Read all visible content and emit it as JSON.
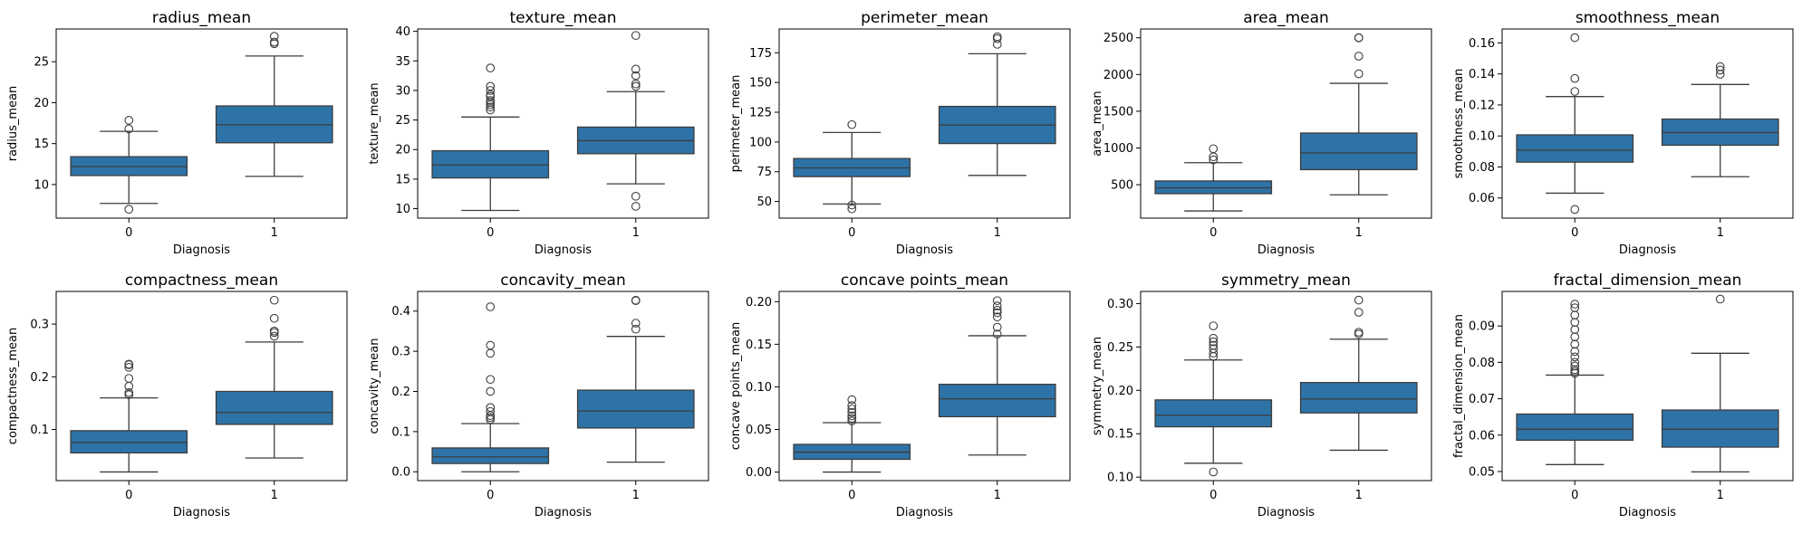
{
  "figure": {
    "background": "#ffffff",
    "box_color": "#2e73a8",
    "line_color": "#3d3d3d"
  },
  "chart_data": [
    {
      "type": "box",
      "title": "radius_mean",
      "xlabel": "Diagnosis",
      "ylabel": "radius_mean",
      "categories": [
        "0",
        "1"
      ],
      "ylim": [
        5.9,
        29.0
      ],
      "yticks": [
        10,
        15,
        20,
        25
      ],
      "boxes": [
        {
          "category": "0",
          "whislo": 7.7,
          "q1": 11.1,
          "med": 12.2,
          "q3": 13.4,
          "whishi": 16.5,
          "fliers": [
            6.98,
            16.8,
            17.85
          ]
        },
        {
          "category": "1",
          "whislo": 11.0,
          "q1": 15.1,
          "med": 17.3,
          "q3": 19.6,
          "whishi": 25.7,
          "fliers": [
            27.2,
            27.4,
            28.1
          ]
        }
      ]
    },
    {
      "type": "box",
      "title": "texture_mean",
      "xlabel": "Diagnosis",
      "ylabel": "texture_mean",
      "categories": [
        "0",
        "1"
      ],
      "ylim": [
        8.4,
        40.4
      ],
      "yticks": [
        10,
        15,
        20,
        25,
        30,
        35,
        40
      ],
      "boxes": [
        {
          "category": "0",
          "whislo": 9.7,
          "q1": 15.2,
          "med": 17.4,
          "q3": 19.8,
          "whishi": 25.5,
          "fliers": [
            26.7,
            27.2,
            27.6,
            28.0,
            28.3,
            29.0,
            29.3,
            30.0,
            30.7,
            33.8
          ]
        },
        {
          "category": "1",
          "whislo": 14.2,
          "q1": 19.3,
          "med": 21.5,
          "q3": 23.8,
          "whishi": 29.8,
          "fliers": [
            10.4,
            12.1,
            30.7,
            31.1,
            32.5,
            33.6,
            39.3
          ]
        }
      ]
    },
    {
      "type": "box",
      "title": "perimeter_mean",
      "xlabel": "Diagnosis",
      "ylabel": "perimeter_mean",
      "categories": [
        "0",
        "1"
      ],
      "ylim": [
        36,
        195
      ],
      "yticks": [
        50,
        75,
        100,
        125,
        150,
        175
      ],
      "boxes": [
        {
          "category": "0",
          "whislo": 47.9,
          "q1": 70.9,
          "med": 78.2,
          "q3": 86.1,
          "whishi": 108.0,
          "fliers": [
            43.8,
            47.0,
            114.6
          ]
        },
        {
          "category": "1",
          "whislo": 71.9,
          "q1": 98.7,
          "med": 114.2,
          "q3": 129.9,
          "whishi": 174.2,
          "fliers": [
            182.1,
            186.9,
            188.5
          ]
        }
      ]
    },
    {
      "type": "box",
      "title": "area_mean",
      "xlabel": "Diagnosis",
      "ylabel": "area_mean",
      "categories": [
        "0",
        "1"
      ],
      "ylim": [
        45,
        2620
      ],
      "yticks": [
        500,
        1000,
        1500,
        2000,
        2500
      ],
      "boxes": [
        {
          "category": "0",
          "whislo": 143,
          "q1": 378,
          "med": 458,
          "q3": 551,
          "whishi": 800,
          "fliers": [
            838,
            880,
            990
          ]
        },
        {
          "category": "1",
          "whislo": 362,
          "q1": 705,
          "med": 932,
          "q3": 1203,
          "whishi": 1880,
          "fliers": [
            2010,
            2250,
            2499,
            2501
          ]
        }
      ]
    },
    {
      "type": "box",
      "title": "smoothness_mean",
      "xlabel": "Diagnosis",
      "ylabel": "smoothness_mean",
      "categories": [
        "0",
        "1"
      ],
      "ylim": [
        0.047,
        0.169
      ],
      "yticks": [
        0.06,
        0.08,
        0.1,
        0.12,
        0.14,
        0.16
      ],
      "boxes": [
        {
          "category": "0",
          "whislo": 0.0631,
          "q1": 0.0831,
          "med": 0.0908,
          "q3": 0.1007,
          "whishi": 0.1254,
          "fliers": [
            0.0526,
            0.1287,
            0.1371,
            0.1634
          ]
        },
        {
          "category": "1",
          "whislo": 0.0737,
          "q1": 0.094,
          "med": 0.1022,
          "q3": 0.1109,
          "whishi": 0.1332,
          "fliers": [
            0.1398,
            0.1425,
            0.1447
          ]
        }
      ]
    },
    {
      "type": "box",
      "title": "compactness_mean",
      "xlabel": "Diagnosis",
      "ylabel": "compactness_mean",
      "categories": [
        "0",
        "1"
      ],
      "ylim": [
        0.003,
        0.362
      ],
      "yticks": [
        0.1,
        0.2,
        0.3
      ],
      "boxes": [
        {
          "category": "0",
          "whislo": 0.0194,
          "q1": 0.0556,
          "med": 0.0753,
          "q3": 0.0977,
          "whishi": 0.16,
          "fliers": [
            0.166,
            0.17,
            0.182,
            0.197,
            0.218,
            0.223,
            0.224
          ]
        },
        {
          "category": "1",
          "whislo": 0.046,
          "q1": 0.1097,
          "med": 0.1323,
          "q3": 0.1722,
          "whishi": 0.266,
          "fliers": [
            0.277,
            0.284,
            0.287,
            0.311,
            0.3454
          ]
        }
      ]
    },
    {
      "type": "box",
      "title": "concavity_mean",
      "xlabel": "Diagnosis",
      "ylabel": "concavity_mean",
      "categories": [
        "0",
        "1"
      ],
      "ylim": [
        -0.022,
        0.449
      ],
      "yticks": [
        0.0,
        0.1,
        0.2,
        0.3,
        0.4
      ],
      "boxes": [
        {
          "category": "0",
          "whislo": 0.0,
          "q1": 0.0206,
          "med": 0.0371,
          "q3": 0.0593,
          "whishi": 0.12,
          "fliers": [
            0.13,
            0.135,
            0.14,
            0.15,
            0.16,
            0.2,
            0.23,
            0.295,
            0.315,
            0.4108
          ]
        },
        {
          "category": "1",
          "whislo": 0.024,
          "q1": 0.109,
          "med": 0.1513,
          "q3": 0.2032,
          "whishi": 0.337,
          "fliers": [
            0.355,
            0.37,
            0.426,
            0.427
          ]
        }
      ]
    },
    {
      "type": "box",
      "title": "concave points_mean",
      "xlabel": "Diagnosis",
      "ylabel": "concave points_mean",
      "categories": [
        "0",
        "1"
      ],
      "ylim": [
        -0.01,
        0.212
      ],
      "yticks": [
        0.0,
        0.05,
        0.1,
        0.15,
        0.2
      ],
      "boxes": [
        {
          "category": "0",
          "whislo": 0.0,
          "q1": 0.015,
          "med": 0.0234,
          "q3": 0.0325,
          "whishi": 0.058,
          "fliers": [
            0.06,
            0.063,
            0.066,
            0.07,
            0.074,
            0.078,
            0.085
          ]
        },
        {
          "category": "1",
          "whislo": 0.02,
          "q1": 0.065,
          "med": 0.086,
          "q3": 0.103,
          "whishi": 0.16,
          "fliers": [
            0.162,
            0.17,
            0.182,
            0.187,
            0.19,
            0.195,
            0.2012
          ]
        }
      ]
    },
    {
      "type": "box",
      "title": "symmetry_mean",
      "xlabel": "Diagnosis",
      "ylabel": "symmetry_mean",
      "categories": [
        "0",
        "1"
      ],
      "ylim": [
        0.096,
        0.314
      ],
      "yticks": [
        0.1,
        0.15,
        0.2,
        0.25,
        0.3
      ],
      "boxes": [
        {
          "category": "0",
          "whislo": 0.116,
          "q1": 0.158,
          "med": 0.1714,
          "q3": 0.189,
          "whishi": 0.235,
          "fliers": [
            0.106,
            0.239,
            0.243,
            0.248,
            0.252,
            0.256,
            0.26,
            0.2743
          ]
        },
        {
          "category": "1",
          "whislo": 0.131,
          "q1": 0.174,
          "med": 0.19,
          "q3": 0.209,
          "whishi": 0.259,
          "fliers": [
            0.265,
            0.267,
            0.29,
            0.304
          ]
        }
      ]
    },
    {
      "type": "box",
      "title": "fractal_dimension_mean",
      "xlabel": "Diagnosis",
      "ylabel": "fractal_dimension_mean",
      "categories": [
        "0",
        "1"
      ],
      "ylim": [
        0.0475,
        0.0995
      ],
      "yticks": [
        0.05,
        0.06,
        0.07,
        0.08,
        0.09
      ],
      "boxes": [
        {
          "category": "0",
          "whislo": 0.0519,
          "q1": 0.0586,
          "med": 0.0616,
          "q3": 0.0658,
          "whishi": 0.0765,
          "fliers": [
            0.077,
            0.0775,
            0.078,
            0.079,
            0.08,
            0.0815,
            0.083,
            0.085,
            0.087,
            0.089,
            0.091,
            0.093,
            0.095,
            0.096
          ]
        },
        {
          "category": "1",
          "whislo": 0.0499,
          "q1": 0.0567,
          "med": 0.0616,
          "q3": 0.0669,
          "whishi": 0.0825,
          "fliers": [
            0.0974
          ]
        }
      ]
    }
  ]
}
